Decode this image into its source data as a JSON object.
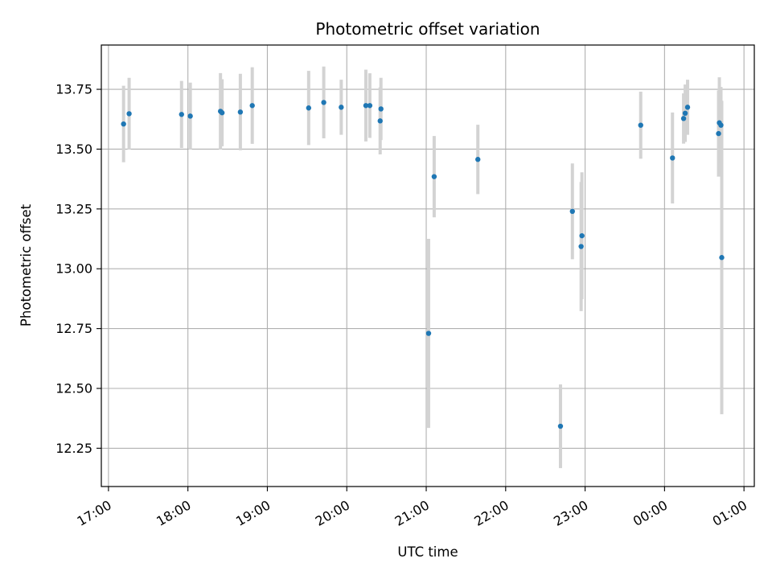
{
  "chart_data": {
    "type": "scatter",
    "title": "Photometric offset variation",
    "xlabel": "UTC time",
    "ylabel": "Photometric offset",
    "x_unit": "hour",
    "xlim": [
      16.91,
      25.13
    ],
    "ylim": [
      12.09,
      13.935
    ],
    "grid": true,
    "x_ticks": [
      {
        "value": 17,
        "label": "17:00"
      },
      {
        "value": 18,
        "label": "18:00"
      },
      {
        "value": 19,
        "label": "19:00"
      },
      {
        "value": 20,
        "label": "20:00"
      },
      {
        "value": 21,
        "label": "21:00"
      },
      {
        "value": 22,
        "label": "22:00"
      },
      {
        "value": 23,
        "label": "23:00"
      },
      {
        "value": 24,
        "label": "00:00"
      },
      {
        "value": 25,
        "label": "01:00"
      }
    ],
    "y_ticks": [
      {
        "value": 12.25,
        "label": "12.25"
      },
      {
        "value": 12.5,
        "label": "12.50"
      },
      {
        "value": 12.75,
        "label": "12.75"
      },
      {
        "value": 13.0,
        "label": "13.00"
      },
      {
        "value": 13.25,
        "label": "13.25"
      },
      {
        "value": 13.5,
        "label": "13.50"
      },
      {
        "value": 13.75,
        "label": "13.75"
      }
    ],
    "colors": {
      "point": "#1f77b4",
      "errorbar": "#d3d3d3",
      "grid": "#b0b0b0",
      "axis": "#000000"
    },
    "points": [
      {
        "x": 17.19,
        "y": 13.605,
        "err": 0.16
      },
      {
        "x": 17.26,
        "y": 13.648,
        "err": 0.15
      },
      {
        "x": 17.92,
        "y": 13.645,
        "err": 0.14
      },
      {
        "x": 18.03,
        "y": 13.638,
        "err": 0.14
      },
      {
        "x": 18.41,
        "y": 13.658,
        "err": 0.16
      },
      {
        "x": 18.43,
        "y": 13.652,
        "err": 0.14
      },
      {
        "x": 18.66,
        "y": 13.655,
        "err": 0.16
      },
      {
        "x": 18.81,
        "y": 13.682,
        "err": 0.16
      },
      {
        "x": 19.52,
        "y": 13.672,
        "err": 0.155
      },
      {
        "x": 19.71,
        "y": 13.695,
        "err": 0.15
      },
      {
        "x": 19.93,
        "y": 13.675,
        "err": 0.115
      },
      {
        "x": 20.24,
        "y": 13.682,
        "err": 0.15
      },
      {
        "x": 20.29,
        "y": 13.682,
        "err": 0.135
      },
      {
        "x": 20.42,
        "y": 13.618,
        "err": 0.14
      },
      {
        "x": 20.43,
        "y": 13.668,
        "err": 0.13
      },
      {
        "x": 21.03,
        "y": 12.73,
        "err": 0.395
      },
      {
        "x": 21.1,
        "y": 13.385,
        "err": 0.17
      },
      {
        "x": 21.65,
        "y": 13.457,
        "err": 0.145
      },
      {
        "x": 22.69,
        "y": 12.342,
        "err": 0.175
      },
      {
        "x": 22.84,
        "y": 13.24,
        "err": 0.2
      },
      {
        "x": 22.95,
        "y": 13.093,
        "err": 0.27
      },
      {
        "x": 22.96,
        "y": 13.138,
        "err": 0.265
      },
      {
        "x": 23.7,
        "y": 13.6,
        "err": 0.14
      },
      {
        "x": 24.1,
        "y": 13.463,
        "err": 0.19
      },
      {
        "x": 24.24,
        "y": 13.628,
        "err": 0.105
      },
      {
        "x": 24.26,
        "y": 13.65,
        "err": 0.12
      },
      {
        "x": 24.29,
        "y": 13.675,
        "err": 0.115
      },
      {
        "x": 24.68,
        "y": 13.565,
        "err": 0.18
      },
      {
        "x": 24.69,
        "y": 13.61,
        "err": 0.19
      },
      {
        "x": 24.71,
        "y": 13.6,
        "err": 0.16
      },
      {
        "x": 24.72,
        "y": 13.047,
        "err": 0.655
      }
    ]
  }
}
